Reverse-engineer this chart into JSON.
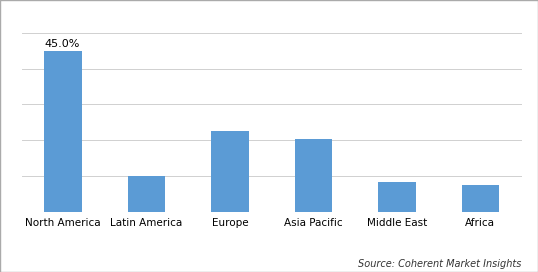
{
  "categories": [
    "North America",
    "Latin America",
    "Europe",
    "Asia Pacific",
    "Middle East",
    "Africa"
  ],
  "values": [
    45.0,
    10.0,
    22.5,
    20.5,
    8.5,
    7.5
  ],
  "bar_color": "#5b9bd5",
  "annotation_value": "45.0%",
  "annotation_index": 0,
  "source_text": "Source: Coherent Market Insights",
  "ylim": [
    0,
    50
  ],
  "background_color": "#ffffff",
  "grid_color": "#d0d0d0",
  "annotation_fontsize": 8,
  "xlabel_fontsize": 7.5,
  "source_fontsize": 7,
  "bar_width": 0.45
}
